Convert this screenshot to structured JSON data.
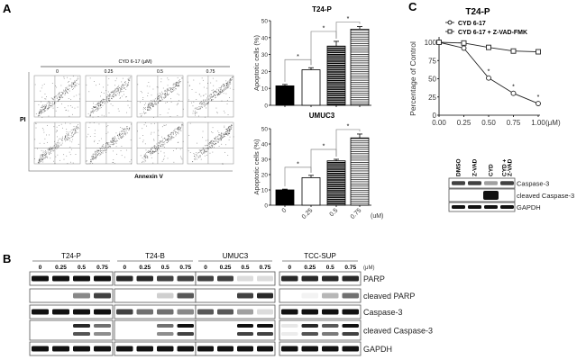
{
  "panel_labels": {
    "a": "A",
    "b": "B",
    "c": "C"
  },
  "flow": {
    "header": "CYD 6-17 (μM)",
    "columns": [
      "0",
      "0.25",
      "0.5",
      "0.75"
    ],
    "ylabel": "PI",
    "xlabel": "Annexin V",
    "apoptotic_level": [
      0.15,
      0.3,
      0.5,
      0.7
    ]
  },
  "chart_data": [
    {
      "type": "bar",
      "title": "T24-P",
      "ylabel": "Apoptotic cells (%)",
      "categories": [
        "0",
        "0.25",
        "0.5",
        "0.75"
      ],
      "unit_label": "(uM)",
      "values": [
        11.5,
        21,
        35,
        45
      ],
      "errors": [
        0.8,
        1.2,
        2.8,
        1.5
      ],
      "ylim": [
        0,
        50
      ],
      "yticks": [
        "0",
        "10",
        "20",
        "30",
        "40",
        "50"
      ],
      "significance": [
        "*",
        "*",
        "*"
      ]
    },
    {
      "type": "bar",
      "title": "UMUC3",
      "ylabel": "Apoptotic cells (%)",
      "categories": [
        "0",
        "0.25",
        "0.5",
        "0.75"
      ],
      "unit_label": "(uM)",
      "values": [
        10,
        18,
        29,
        44
      ],
      "errors": [
        0.5,
        1.5,
        1,
        2.5
      ],
      "ylim": [
        0,
        50
      ],
      "yticks": [
        "0",
        "10",
        "20",
        "30",
        "40",
        "50"
      ],
      "significance": [
        "*",
        "*",
        "*"
      ]
    },
    {
      "type": "line",
      "title": "T24-P",
      "ylabel": "Percentage of Control",
      "x": [
        0,
        0.25,
        0.5,
        0.75,
        1.0
      ],
      "xticks": [
        "0.00",
        "0.25",
        "0.50",
        "0.75",
        "1.00"
      ],
      "unit_label": "(μM)",
      "yticks": [
        "0",
        "25",
        "50",
        "75",
        "100"
      ],
      "xlim": [
        0,
        1
      ],
      "ylim": [
        0,
        100
      ],
      "legend": "top-left",
      "series": [
        {
          "name": "CYD 6-17",
          "marker": "circle",
          "values": [
            100,
            92,
            51,
            30,
            16
          ],
          "stars": [
            "",
            "",
            "*",
            "*",
            "*"
          ]
        },
        {
          "name": "CYD 6-17 + Z-VAD-FMK",
          "marker": "square",
          "values": [
            100,
            99,
            93,
            88,
            87
          ]
        }
      ]
    }
  ],
  "blot_c": {
    "lanes": [
      "DMSO",
      "Z-VAD",
      "CYD",
      "CYD +",
      "Z-VAD"
    ],
    "lane_labels": [
      "DMSO",
      "Z-VAD",
      "CYD",
      "CYD + Z-VAD"
    ],
    "rows": [
      {
        "label": "Caspase-3",
        "intensity": [
          0.8,
          0.8,
          0.4,
          0.8
        ]
      },
      {
        "label": "cleaved Caspase-3",
        "intensity": [
          0,
          0,
          1,
          0
        ]
      },
      {
        "label": "GAPDH",
        "intensity": [
          1,
          1,
          1,
          1
        ]
      }
    ]
  },
  "blot_b": {
    "groups": [
      "T24-P",
      "T24-B",
      "UMUC3",
      "TCC-SUP"
    ],
    "conc": [
      "0",
      "0.25",
      "0.5",
      "0.75"
    ],
    "unit": "(μM)",
    "rows": [
      {
        "label": "PARP",
        "intensity": [
          [
            1,
            1,
            1,
            1
          ],
          [
            0.9,
            0.9,
            0.8,
            0.8
          ],
          [
            0.8,
            0.8,
            0.15,
            0.15
          ],
          [
            0.9,
            0.9,
            0.9,
            0.9
          ]
        ]
      },
      {
        "label": "cleaved PARP",
        "intensity": [
          [
            0,
            0,
            0.5,
            0.8
          ],
          [
            0,
            0,
            0.2,
            0.7
          ],
          [
            0,
            0,
            0.8,
            0.9
          ],
          [
            0,
            0.05,
            0.3,
            0.6
          ]
        ]
      },
      {
        "label": "Caspase-3",
        "intensity": [
          [
            1,
            1,
            1,
            1
          ],
          [
            0.8,
            0.6,
            0.6,
            0.5
          ],
          [
            0.7,
            0.7,
            0.4,
            0.15
          ],
          [
            1,
            1,
            1,
            1
          ]
        ]
      },
      {
        "label": "cleaved Caspase-3",
        "intensity": [
          [
            0,
            0,
            0.9,
            0.6
          ],
          [
            0,
            0,
            0.6,
            1
          ],
          [
            0,
            0,
            1,
            1
          ],
          [
            0.1,
            0.9,
            0.7,
            1
          ]
        ]
      },
      {
        "label": "GAPDH",
        "intensity": [
          [
            1,
            1,
            1,
            1
          ],
          [
            1,
            1,
            1,
            1
          ],
          [
            1,
            1,
            1,
            1
          ],
          [
            1,
            1,
            1,
            1
          ]
        ]
      }
    ]
  }
}
